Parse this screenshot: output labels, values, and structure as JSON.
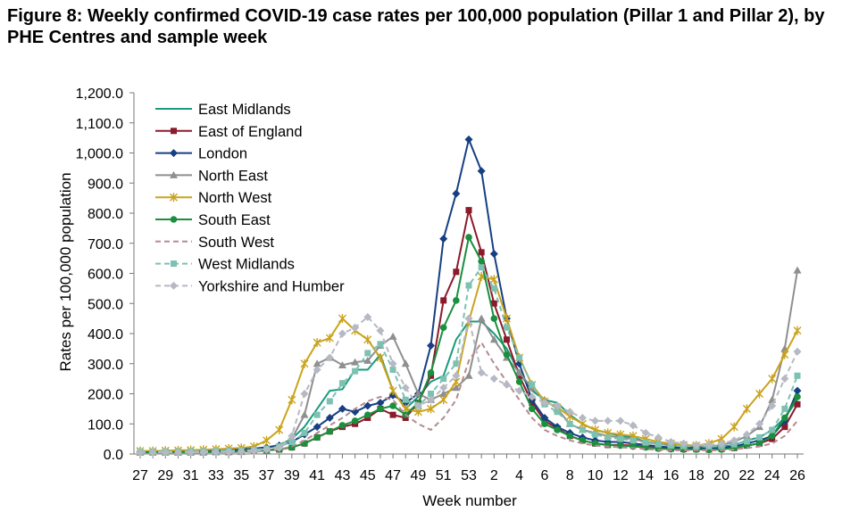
{
  "figure": {
    "title": "Figure 8: Weekly confirmed COVID-19 case rates per 100,000 population (Pillar 1 and Pillar 2), by PHE Centres and sample week"
  },
  "chart_data": {
    "type": "line",
    "title": "Figure 8: Weekly confirmed COVID-19 case rates per 100,000 population (Pillar 1 and Pillar 2), by PHE Centres and sample week",
    "xlabel": "Week number",
    "ylabel": "Rates per 100,000 population",
    "ylim": [
      0,
      1200
    ],
    "yticks": [
      "0.0",
      "100.0",
      "200.0",
      "300.0",
      "400.0",
      "500.0",
      "600.0",
      "700.0",
      "800.0",
      "900.0",
      "1,000.0",
      "1,100.0",
      "1,200.0"
    ],
    "xticks": [
      "27",
      "29",
      "31",
      "33",
      "35",
      "37",
      "39",
      "41",
      "43",
      "45",
      "47",
      "49",
      "51",
      "53",
      "2",
      "4",
      "6",
      "8",
      "10",
      "12",
      "14",
      "16",
      "18",
      "20",
      "22",
      "24",
      "26"
    ],
    "categories": [
      "27",
      "28",
      "29",
      "30",
      "31",
      "32",
      "33",
      "34",
      "35",
      "36",
      "37",
      "38",
      "39",
      "40",
      "41",
      "42",
      "43",
      "44",
      "45",
      "46",
      "47",
      "48",
      "49",
      "50",
      "51",
      "52",
      "53",
      "1",
      "2",
      "3",
      "4",
      "5",
      "6",
      "7",
      "8",
      "9",
      "10",
      "11",
      "12",
      "13",
      "14",
      "15",
      "16",
      "17",
      "18",
      "19",
      "20",
      "21",
      "22",
      "23",
      "24",
      "25",
      "26"
    ],
    "grid": false,
    "legend_position": "top-left",
    "series": [
      {
        "name": "East Midlands",
        "color": "#1a9a7e",
        "style": "solid",
        "marker": "none",
        "values": [
          10,
          9,
          9,
          10,
          11,
          12,
          13,
          14,
          15,
          18,
          22,
          30,
          50,
          90,
          150,
          210,
          215,
          280,
          280,
          330,
          210,
          150,
          190,
          240,
          260,
          380,
          440,
          440,
          400,
          350,
          270,
          210,
          180,
          170,
          130,
          100,
          80,
          70,
          60,
          55,
          40,
          35,
          28,
          25,
          25,
          25,
          24,
          30,
          45,
          55,
          80,
          120,
          180
        ]
      },
      {
        "name": "East of England",
        "color": "#8b1a2b",
        "style": "solid",
        "marker": "square",
        "values": [
          6,
          6,
          6,
          6,
          7,
          7,
          8,
          8,
          9,
          10,
          12,
          15,
          22,
          35,
          55,
          75,
          90,
          100,
          120,
          150,
          130,
          120,
          170,
          260,
          510,
          605,
          810,
          670,
          500,
          380,
          260,
          170,
          110,
          85,
          60,
          45,
          35,
          30,
          30,
          28,
          24,
          20,
          18,
          16,
          16,
          15,
          17,
          20,
          28,
          35,
          50,
          90,
          165
        ]
      },
      {
        "name": "London",
        "color": "#173f83",
        "style": "solid",
        "marker": "diamond",
        "values": [
          7,
          7,
          7,
          8,
          8,
          9,
          10,
          12,
          15,
          18,
          22,
          28,
          40,
          65,
          90,
          120,
          150,
          140,
          160,
          170,
          195,
          170,
          200,
          360,
          715,
          865,
          1045,
          940,
          665,
          450,
          300,
          180,
          120,
          90,
          70,
          55,
          45,
          40,
          40,
          35,
          30,
          25,
          22,
          20,
          20,
          18,
          20,
          25,
          35,
          45,
          60,
          110,
          210
        ]
      },
      {
        "name": "North East",
        "color": "#8f8f8f",
        "style": "solid",
        "marker": "triangle",
        "values": [
          5,
          5,
          5,
          5,
          5,
          5,
          6,
          6,
          7,
          9,
          12,
          20,
          50,
          130,
          300,
          320,
          295,
          305,
          310,
          360,
          390,
          300,
          200,
          180,
          200,
          220,
          260,
          450,
          380,
          320,
          270,
          220,
          180,
          150,
          100,
          80,
          70,
          60,
          55,
          50,
          40,
          35,
          30,
          28,
          26,
          25,
          30,
          40,
          60,
          90,
          180,
          350,
          610
        ]
      },
      {
        "name": "North West",
        "color": "#caa31c",
        "style": "solid",
        "marker": "star",
        "values": [
          10,
          10,
          11,
          12,
          13,
          14,
          16,
          18,
          20,
          25,
          45,
          80,
          180,
          300,
          370,
          385,
          450,
          410,
          380,
          320,
          210,
          150,
          140,
          150,
          180,
          240,
          440,
          590,
          580,
          450,
          320,
          230,
          175,
          155,
          125,
          100,
          80,
          70,
          65,
          60,
          50,
          40,
          35,
          30,
          28,
          35,
          50,
          90,
          150,
          200,
          250,
          330,
          410
        ]
      },
      {
        "name": "South East",
        "color": "#1a8f3e",
        "style": "solid",
        "marker": "circle",
        "values": [
          6,
          6,
          6,
          6,
          6,
          7,
          7,
          8,
          9,
          10,
          12,
          15,
          22,
          35,
          55,
          75,
          95,
          110,
          130,
          150,
          160,
          130,
          170,
          270,
          420,
          510,
          720,
          640,
          450,
          330,
          240,
          150,
          100,
          80,
          60,
          45,
          35,
          30,
          28,
          25,
          22,
          18,
          16,
          15,
          15,
          14,
          15,
          20,
          28,
          35,
          60,
          120,
          190
        ]
      },
      {
        "name": "South West",
        "color": "#b58a8f",
        "style": "dash",
        "marker": "none",
        "values": [
          4,
          4,
          4,
          4,
          4,
          5,
          5,
          5,
          6,
          7,
          10,
          15,
          25,
          45,
          70,
          95,
          120,
          150,
          175,
          190,
          180,
          130,
          100,
          80,
          120,
          180,
          310,
          370,
          300,
          240,
          180,
          120,
          80,
          60,
          45,
          35,
          28,
          25,
          22,
          20,
          16,
          14,
          12,
          12,
          12,
          12,
          12,
          15,
          20,
          25,
          35,
          60,
          110
        ]
      },
      {
        "name": "West Midlands",
        "color": "#7cc1b1",
        "style": "dash",
        "marker": "square",
        "values": [
          8,
          8,
          8,
          8,
          9,
          9,
          10,
          11,
          12,
          14,
          18,
          25,
          40,
          70,
          130,
          175,
          235,
          275,
          335,
          365,
          280,
          180,
          160,
          200,
          250,
          300,
          560,
          620,
          550,
          420,
          320,
          230,
          165,
          140,
          100,
          80,
          65,
          55,
          50,
          45,
          38,
          32,
          28,
          26,
          25,
          25,
          26,
          32,
          42,
          55,
          80,
          150,
          260
        ]
      },
      {
        "name": "Yorkshire and Humber",
        "color": "#b6b9c4",
        "style": "dash",
        "marker": "diamond",
        "values": [
          5,
          5,
          5,
          5,
          5,
          6,
          6,
          7,
          8,
          10,
          14,
          20,
          60,
          200,
          280,
          320,
          400,
          420,
          455,
          410,
          300,
          220,
          160,
          180,
          220,
          260,
          450,
          270,
          250,
          230,
          210,
          190,
          170,
          160,
          140,
          120,
          110,
          110,
          110,
          95,
          70,
          55,
          40,
          35,
          30,
          30,
          35,
          45,
          65,
          100,
          160,
          250,
          340
        ]
      }
    ]
  }
}
